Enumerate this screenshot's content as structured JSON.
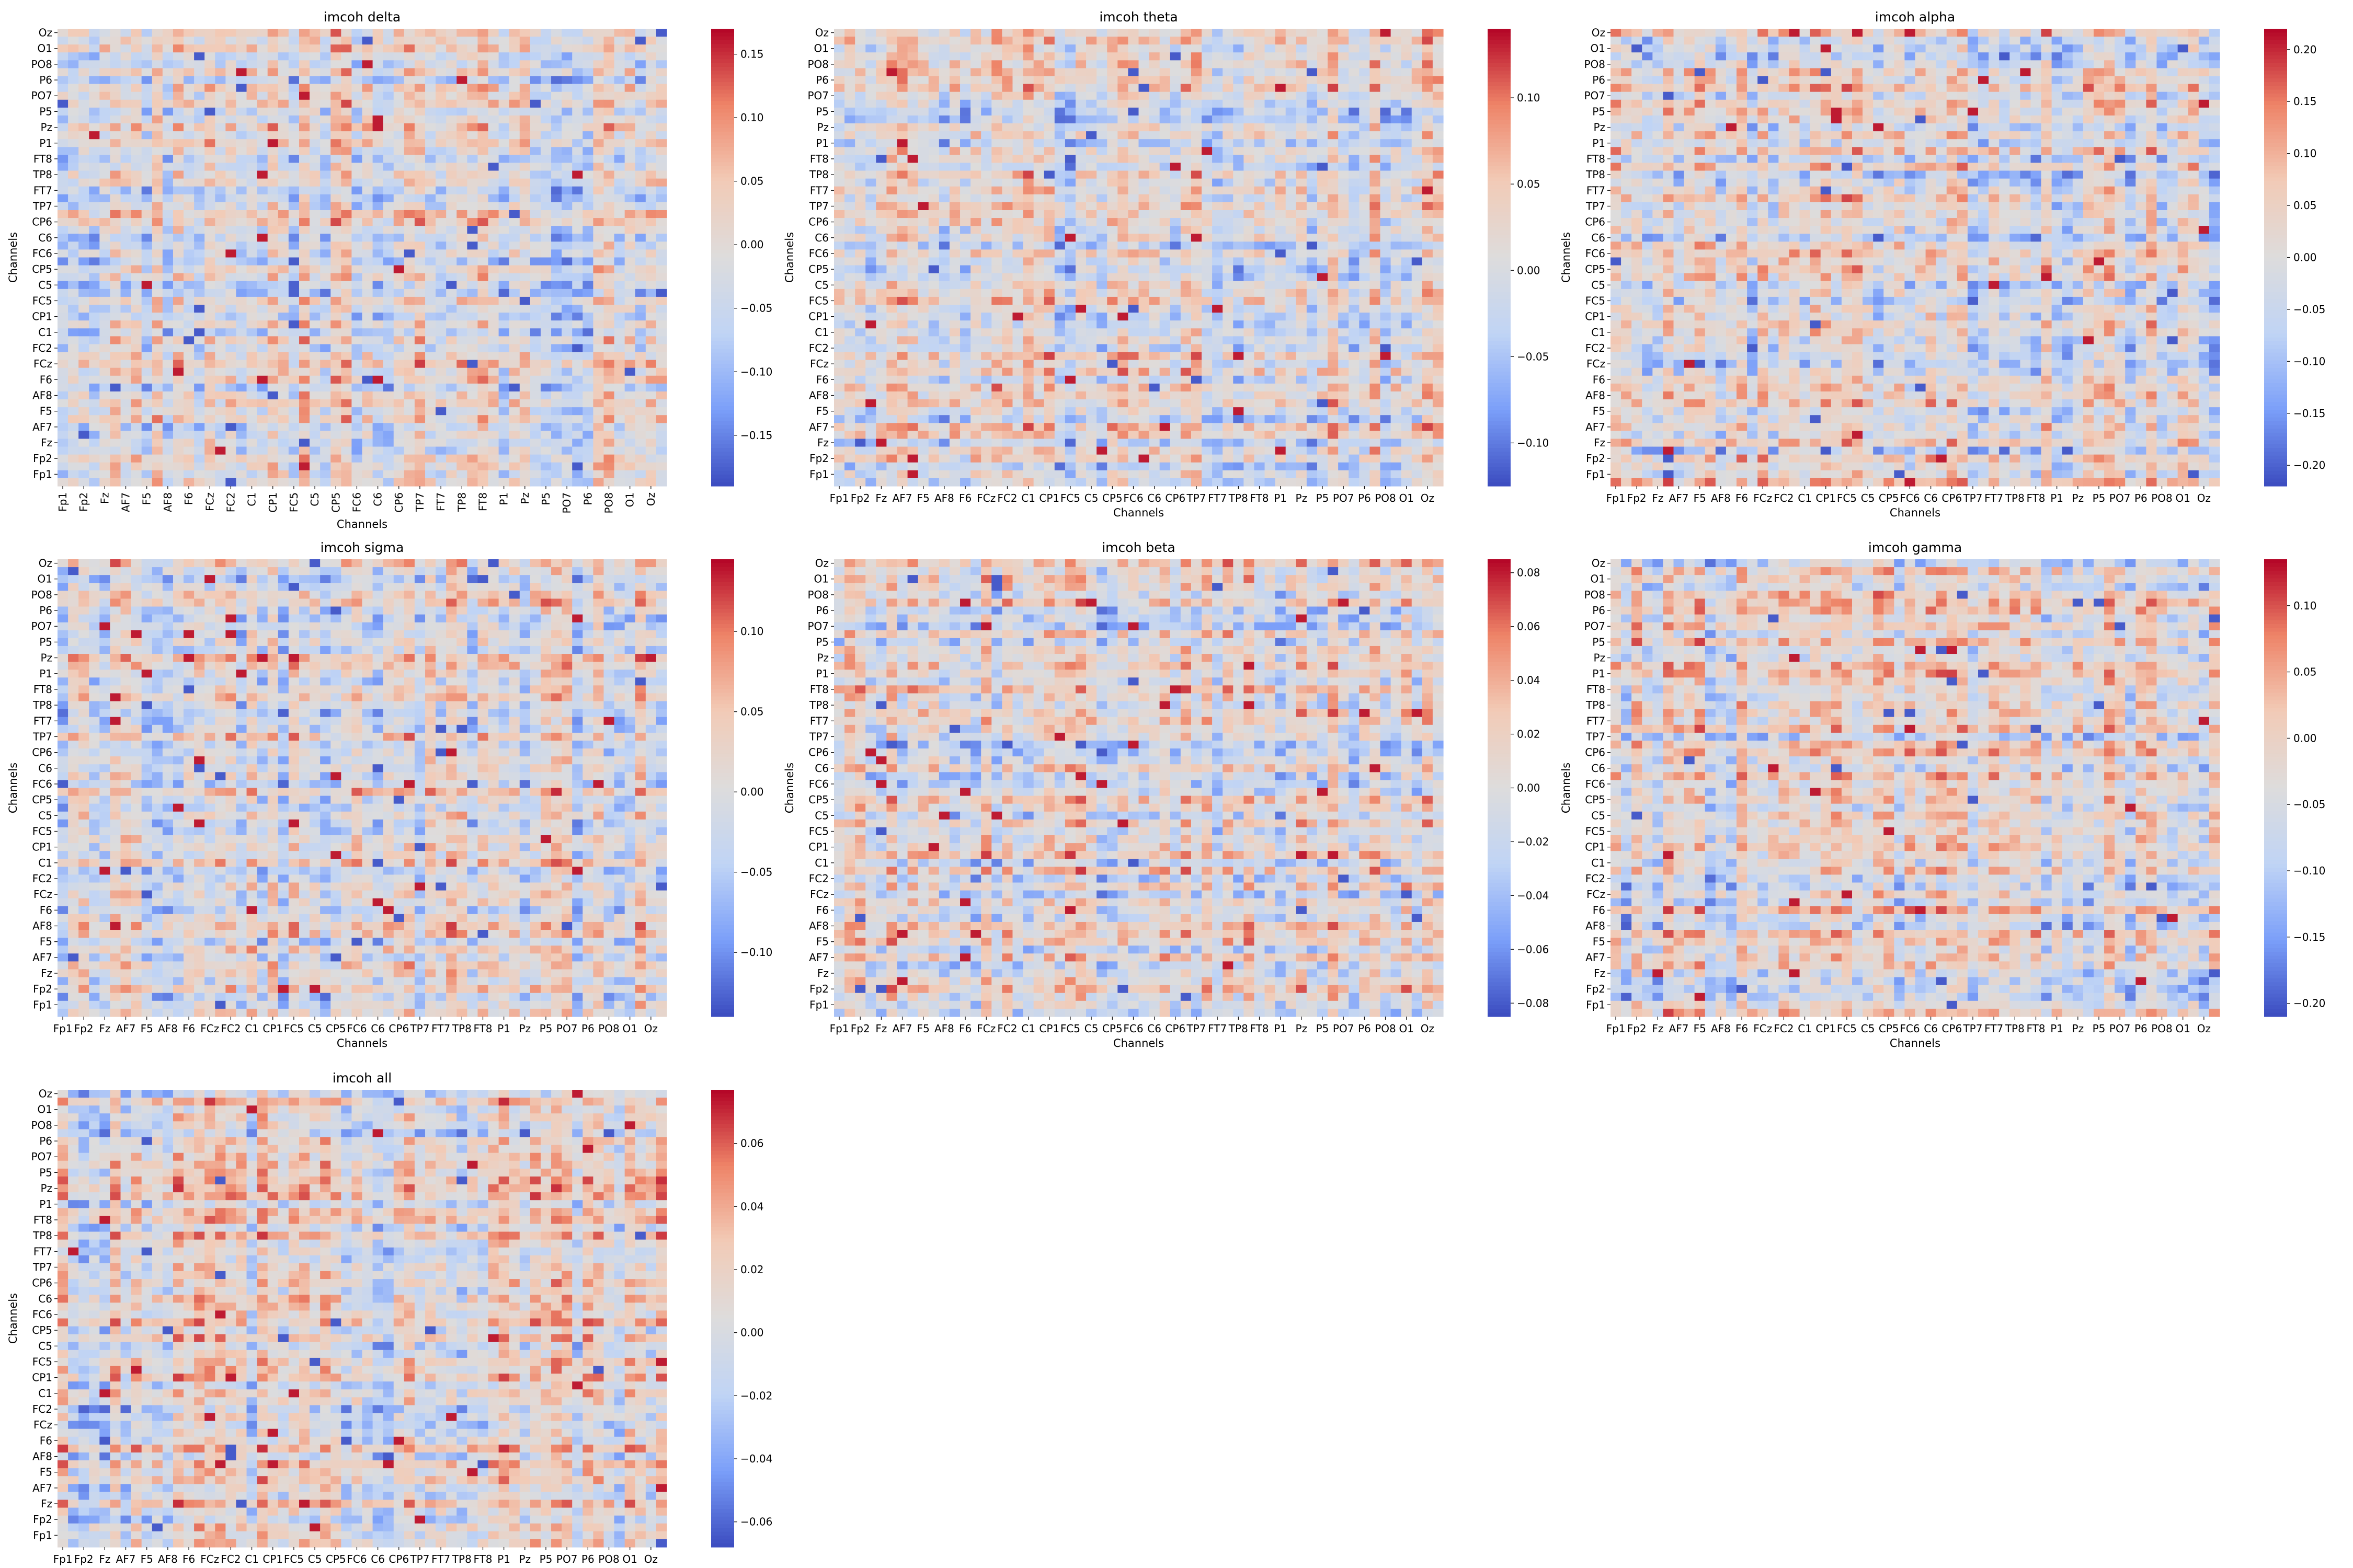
{
  "colorscale": {
    "name": "coolwarm",
    "stops": [
      "#3b4cc0",
      "#7b9ff9",
      "#c0d4f5",
      "#dddcdc",
      "#f2cbb7",
      "#ee8468",
      "#b40426"
    ]
  },
  "chart_data": [
    {
      "type": "heatmap",
      "title": "imcoh delta",
      "xlabel": "Channels",
      "ylabel": "Channels",
      "x_tick_rotation": "vertical",
      "x_ticks": [
        "Fp1",
        "Fp2",
        "Fz",
        "AF7",
        "F5",
        "AF8",
        "F6",
        "FCz",
        "FC2",
        "C1",
        "CP1",
        "FC5",
        "C5",
        "CP5",
        "FC6",
        "C6",
        "CP6",
        "TP7",
        "FT7",
        "TP8",
        "FT8",
        "P1",
        "Pz",
        "P5",
        "PO7",
        "P6",
        "PO8",
        "O1",
        "Oz"
      ],
      "y_ticks": [
        "Oz",
        "O1",
        "PO8",
        "P6",
        "PO7",
        "P5",
        "Pz",
        "P1",
        "FT8",
        "TP8",
        "FT7",
        "TP7",
        "CP6",
        "C6",
        "FC6",
        "CP5",
        "C5",
        "FC5",
        "CP1",
        "C1",
        "FC2",
        "FCz",
        "F6",
        "AF8",
        "F5",
        "AF7",
        "Fz",
        "Fp2",
        "Fp1"
      ],
      "colorbar": {
        "vmin": -0.19,
        "vmax": 0.17,
        "ticks": [
          -0.15,
          -0.1,
          -0.05,
          0.0,
          0.05,
          0.1,
          0.15
        ],
        "tick_labels": [
          "−0.15",
          "−0.10",
          "−0.05",
          "0.00",
          "0.05",
          "0.10",
          "0.15"
        ]
      },
      "grid": false
    },
    {
      "type": "heatmap",
      "title": "imcoh theta",
      "xlabel": "Channels",
      "ylabel": "Channels",
      "x_tick_rotation": "horizontal",
      "x_ticks": [
        "Fp1",
        "Fp2",
        "Fz",
        "AF7",
        "F5",
        "AF8",
        "F6",
        "FCz",
        "FC2",
        "C1",
        "CP1",
        "FC5",
        "C5",
        "CP5",
        "FC6",
        "C6",
        "CP6",
        "TP7",
        "FT7",
        "TP8",
        "FT8",
        "P1",
        "Pz",
        "P5",
        "PO7",
        "P6",
        "PO8",
        "O1",
        "Oz"
      ],
      "y_ticks": [
        "Oz",
        "O1",
        "PO8",
        "P6",
        "PO7",
        "P5",
        "Pz",
        "P1",
        "FT8",
        "TP8",
        "FT7",
        "TP7",
        "CP6",
        "C6",
        "FC6",
        "CP5",
        "C5",
        "FC5",
        "CP1",
        "C1",
        "FC2",
        "FCz",
        "F6",
        "AF8",
        "F5",
        "AF7",
        "Fz",
        "Fp2",
        "Fp1"
      ],
      "colorbar": {
        "vmin": -0.125,
        "vmax": 0.14,
        "ticks": [
          -0.1,
          -0.05,
          0.0,
          0.05,
          0.1
        ],
        "tick_labels": [
          "−0.10",
          "−0.05",
          "0.00",
          "0.05",
          "0.10"
        ]
      },
      "grid": false
    },
    {
      "type": "heatmap",
      "title": "imcoh alpha",
      "xlabel": "Channels",
      "ylabel": "Channels",
      "x_tick_rotation": "horizontal",
      "x_ticks": [
        "Fp1",
        "Fp2",
        "Fz",
        "AF7",
        "F5",
        "AF8",
        "F6",
        "FCz",
        "FC2",
        "C1",
        "CP1",
        "FC5",
        "C5",
        "CP5",
        "FC6",
        "C6",
        "CP6",
        "TP7",
        "FT7",
        "TP8",
        "FT8",
        "P1",
        "Pz",
        "P5",
        "PO7",
        "P6",
        "PO8",
        "O1",
        "Oz"
      ],
      "y_ticks": [
        "Oz",
        "O1",
        "PO8",
        "P6",
        "PO7",
        "P5",
        "Pz",
        "P1",
        "FT8",
        "TP8",
        "FT7",
        "TP7",
        "CP6",
        "C6",
        "FC6",
        "CP5",
        "C5",
        "FC5",
        "CP1",
        "C1",
        "FC2",
        "FCz",
        "F6",
        "AF8",
        "F5",
        "AF7",
        "Fz",
        "Fp2",
        "Fp1"
      ],
      "colorbar": {
        "vmin": -0.22,
        "vmax": 0.22,
        "ticks": [
          -0.2,
          -0.15,
          -0.1,
          -0.05,
          0.0,
          0.05,
          0.1,
          0.15,
          0.2
        ],
        "tick_labels": [
          "−0.20",
          "−0.15",
          "−0.10",
          "−0.05",
          "0.00",
          "0.05",
          "0.10",
          "0.15",
          "0.20"
        ]
      },
      "grid": false
    },
    {
      "type": "heatmap",
      "title": "imcoh sigma",
      "xlabel": "Channels",
      "ylabel": "Channels",
      "x_tick_rotation": "horizontal",
      "x_ticks": [
        "Fp1",
        "Fp2",
        "Fz",
        "AF7",
        "F5",
        "AF8",
        "F6",
        "FCz",
        "FC2",
        "C1",
        "CP1",
        "FC5",
        "C5",
        "CP5",
        "FC6",
        "C6",
        "CP6",
        "TP7",
        "FT7",
        "TP8",
        "FT8",
        "P1",
        "Pz",
        "P5",
        "PO7",
        "P6",
        "PO8",
        "O1",
        "Oz"
      ],
      "y_ticks": [
        "Oz",
        "O1",
        "PO8",
        "P6",
        "PO7",
        "P5",
        "Pz",
        "P1",
        "FT8",
        "TP8",
        "FT7",
        "TP7",
        "CP6",
        "C6",
        "FC6",
        "CP5",
        "C5",
        "FC5",
        "CP1",
        "C1",
        "FC2",
        "FCz",
        "F6",
        "AF8",
        "F5",
        "AF7",
        "Fz",
        "Fp2",
        "Fp1"
      ],
      "colorbar": {
        "vmin": -0.14,
        "vmax": 0.145,
        "ticks": [
          -0.1,
          -0.05,
          0.0,
          0.05,
          0.1
        ],
        "tick_labels": [
          "−0.10",
          "−0.05",
          "0.00",
          "0.05",
          "0.10"
        ]
      },
      "grid": false
    },
    {
      "type": "heatmap",
      "title": "imcoh beta",
      "xlabel": "Channels",
      "ylabel": "Channels",
      "x_tick_rotation": "horizontal",
      "x_ticks": [
        "Fp1",
        "Fp2",
        "Fz",
        "AF7",
        "F5",
        "AF8",
        "F6",
        "FCz",
        "FC2",
        "C1",
        "CP1",
        "FC5",
        "C5",
        "CP5",
        "FC6",
        "C6",
        "CP6",
        "TP7",
        "FT7",
        "TP8",
        "FT8",
        "P1",
        "Pz",
        "P5",
        "PO7",
        "P6",
        "PO8",
        "O1",
        "Oz"
      ],
      "y_ticks": [
        "Oz",
        "O1",
        "PO8",
        "P6",
        "PO7",
        "P5",
        "Pz",
        "P1",
        "FT8",
        "TP8",
        "FT7",
        "TP7",
        "CP6",
        "C6",
        "FC6",
        "CP5",
        "C5",
        "FC5",
        "CP1",
        "C1",
        "FC2",
        "FCz",
        "F6",
        "AF8",
        "F5",
        "AF7",
        "Fz",
        "Fp2",
        "Fp1"
      ],
      "colorbar": {
        "vmin": -0.085,
        "vmax": 0.085,
        "ticks": [
          -0.08,
          -0.06,
          -0.04,
          -0.02,
          0.0,
          0.02,
          0.04,
          0.06,
          0.08
        ],
        "tick_labels": [
          "−0.08",
          "−0.06",
          "−0.04",
          "−0.02",
          "0.00",
          "0.02",
          "0.04",
          "0.06",
          "0.08"
        ]
      },
      "grid": false
    },
    {
      "type": "heatmap",
      "title": "imcoh gamma",
      "xlabel": "Channels",
      "ylabel": "Channels",
      "x_tick_rotation": "horizontal",
      "x_ticks": [
        "Fp1",
        "Fp2",
        "Fz",
        "AF7",
        "F5",
        "AF8",
        "F6",
        "FCz",
        "FC2",
        "C1",
        "CP1",
        "FC5",
        "C5",
        "CP5",
        "FC6",
        "C6",
        "CP6",
        "TP7",
        "FT7",
        "TP8",
        "FT8",
        "P1",
        "Pz",
        "P5",
        "PO7",
        "P6",
        "PO8",
        "O1",
        "Oz"
      ],
      "y_ticks": [
        "Oz",
        "O1",
        "PO8",
        "P6",
        "PO7",
        "P5",
        "Pz",
        "P1",
        "FT8",
        "TP8",
        "FT7",
        "TP7",
        "CP6",
        "C6",
        "FC6",
        "CP5",
        "C5",
        "FC5",
        "CP1",
        "C1",
        "FC2",
        "FCz",
        "F6",
        "AF8",
        "F5",
        "AF7",
        "Fz",
        "Fp2",
        "Fp1"
      ],
      "colorbar": {
        "vmin": -0.21,
        "vmax": 0.135,
        "ticks": [
          -0.2,
          -0.15,
          -0.1,
          -0.05,
          0.0,
          0.05,
          0.1
        ],
        "tick_labels": [
          "−0.20",
          "−0.15",
          "−0.10",
          "−0.05",
          "0.00",
          "0.05",
          "0.10"
        ]
      },
      "grid": false
    },
    {
      "type": "heatmap",
      "title": "imcoh all",
      "xlabel": "Channels",
      "ylabel": "Channels",
      "x_tick_rotation": "horizontal",
      "x_ticks": [
        "Fp1",
        "Fp2",
        "Fz",
        "AF7",
        "F5",
        "AF8",
        "F6",
        "FCz",
        "FC2",
        "C1",
        "CP1",
        "FC5",
        "C5",
        "CP5",
        "FC6",
        "C6",
        "CP6",
        "TP7",
        "FT7",
        "TP8",
        "FT8",
        "P1",
        "Pz",
        "P5",
        "PO7",
        "P6",
        "PO8",
        "O1",
        "Oz"
      ],
      "y_ticks": [
        "Oz",
        "O1",
        "PO8",
        "P6",
        "PO7",
        "P5",
        "Pz",
        "P1",
        "FT8",
        "TP8",
        "FT7",
        "TP7",
        "CP6",
        "C6",
        "FC6",
        "CP5",
        "C5",
        "FC5",
        "CP1",
        "C1",
        "FC2",
        "FCz",
        "F6",
        "AF8",
        "F5",
        "AF7",
        "Fz",
        "Fp2",
        "Fp1"
      ],
      "colorbar": {
        "vmin": -0.068,
        "vmax": 0.077,
        "ticks": [
          -0.06,
          -0.04,
          -0.02,
          0.0,
          0.02,
          0.04,
          0.06
        ],
        "tick_labels": [
          "−0.06",
          "−0.04",
          "−0.02",
          "0.00",
          "0.02",
          "0.04",
          "0.06"
        ]
      },
      "grid": false
    }
  ]
}
